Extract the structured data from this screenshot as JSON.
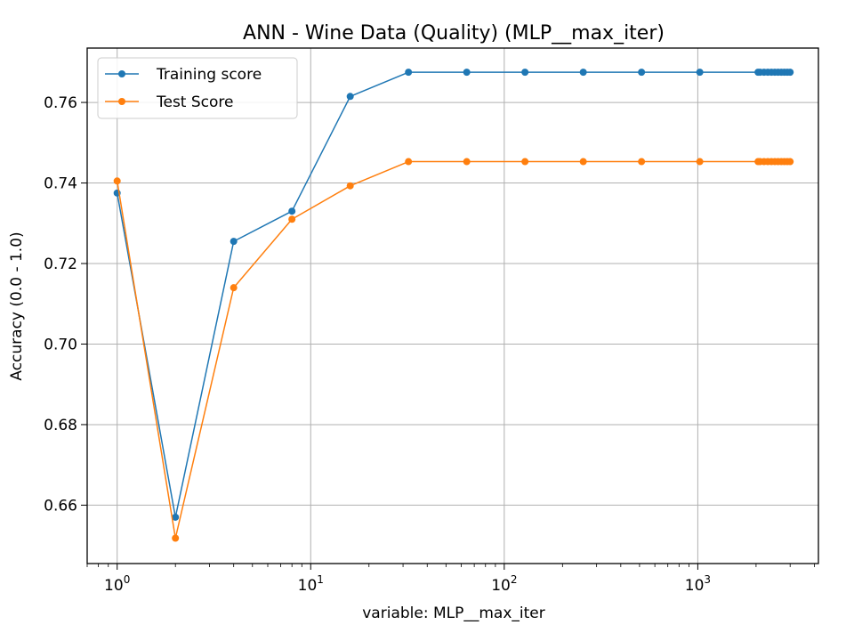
{
  "chart_data": {
    "type": "line",
    "title": "ANN - Wine Data (Quality) (MLP__max_iter)",
    "xlabel": "variable: MLP__max_iter",
    "ylabel": "Accuracy (0.0 - 1.0)",
    "xscale": "log",
    "xlim": [
      0.7,
      4200
    ],
    "ylim": [
      0.6455,
      0.7735
    ],
    "grid": true,
    "legend_position": "top-left",
    "x_major_ticks": [
      {
        "value": 1,
        "base": "10",
        "exp": "0"
      },
      {
        "value": 10,
        "base": "10",
        "exp": "1"
      },
      {
        "value": 100,
        "base": "10",
        "exp": "2"
      },
      {
        "value": 1000,
        "base": "10",
        "exp": "3"
      }
    ],
    "y_ticks": [
      {
        "value": 0.66,
        "label": "0.66"
      },
      {
        "value": 0.68,
        "label": "0.68"
      },
      {
        "value": 0.7,
        "label": "0.70"
      },
      {
        "value": 0.72,
        "label": "0.72"
      },
      {
        "value": 0.74,
        "label": "0.74"
      },
      {
        "value": 0.76,
        "label": "0.76"
      }
    ],
    "x": [
      1,
      2,
      4,
      8,
      16,
      32,
      64,
      128,
      256,
      512,
      1024,
      2048,
      2100,
      2200,
      2300,
      2400,
      2500,
      2600,
      2700,
      2800,
      2900,
      3000
    ],
    "series": [
      {
        "name": "Training score",
        "color": "#1f77b4",
        "values": [
          0.7375,
          0.657,
          0.7255,
          0.733,
          0.7615,
          0.7675,
          0.7675,
          0.7675,
          0.7675,
          0.7675,
          0.7675,
          0.7675,
          0.7675,
          0.7675,
          0.7675,
          0.7675,
          0.7675,
          0.7675,
          0.7675,
          0.7675,
          0.7675,
          0.7675
        ]
      },
      {
        "name": "Test Score",
        "color": "#ff7f0e",
        "values": [
          0.7405,
          0.6518,
          0.714,
          0.731,
          0.7393,
          0.7453,
          0.7453,
          0.7453,
          0.7453,
          0.7453,
          0.7453,
          0.7453,
          0.7453,
          0.7453,
          0.7453,
          0.7453,
          0.7453,
          0.7453,
          0.7453,
          0.7453,
          0.7453,
          0.7453
        ]
      }
    ]
  }
}
